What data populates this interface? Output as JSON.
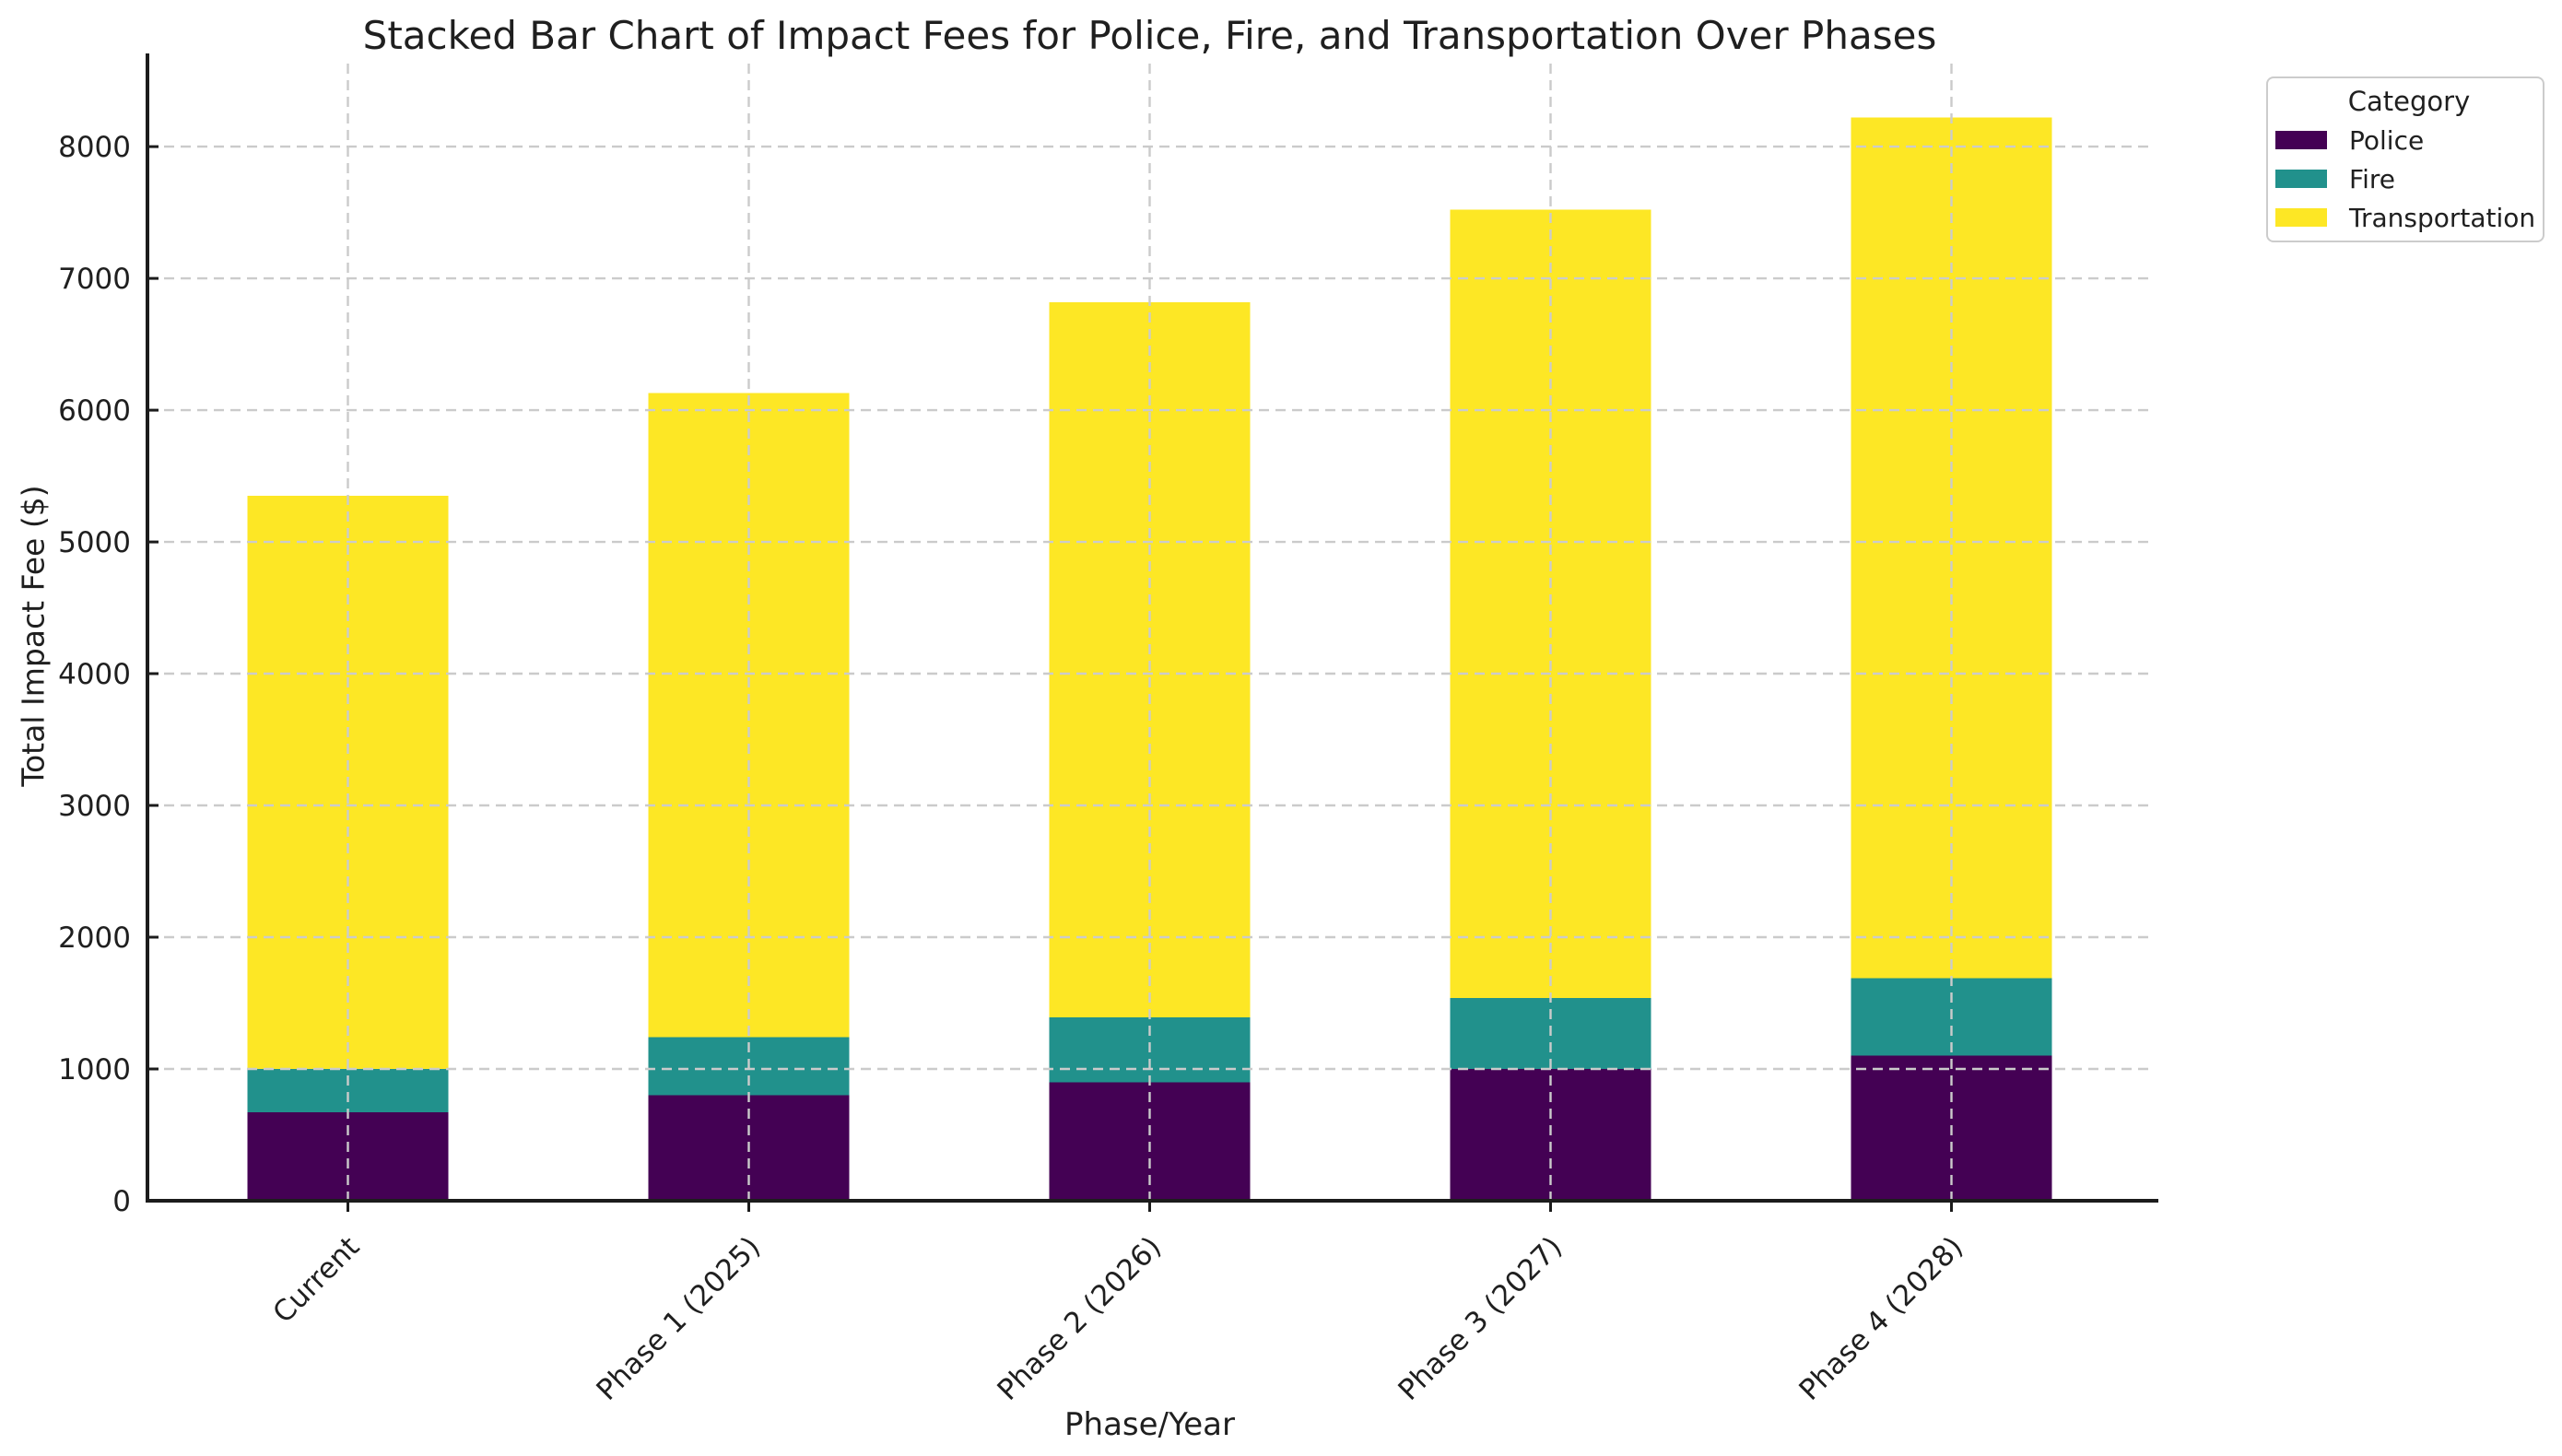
{
  "chart_data": {
    "type": "bar",
    "stacked": true,
    "title": "Stacked Bar Chart of Impact Fees for Police, Fire, and Transportation Over Phases",
    "xlabel": "Phase/Year",
    "ylabel": "Total Impact Fee ($)",
    "categories": [
      "Current",
      "Phase 1 (2025)",
      "Phase 2 (2026)",
      "Phase 3 (2027)",
      "Phase 4 (2028)"
    ],
    "series": [
      {
        "name": "Police",
        "color": "#440154",
        "values": [
          670,
          800,
          900,
          1000,
          1100
        ]
      },
      {
        "name": "Fire",
        "color": "#21918c",
        "values": [
          330,
          440,
          490,
          540,
          590
        ]
      },
      {
        "name": "Transportation",
        "color": "#fde725",
        "values": [
          4350,
          4890,
          5430,
          5980,
          6530
        ]
      }
    ],
    "ylim": [
      0,
      8630
    ],
    "yticks": [
      0,
      1000,
      2000,
      3000,
      4000,
      5000,
      6000,
      7000,
      8000
    ],
    "grid": "dashed, both axes, drawn above bars",
    "legend": {
      "title": "Category",
      "position": "upper right, outside plot"
    }
  }
}
